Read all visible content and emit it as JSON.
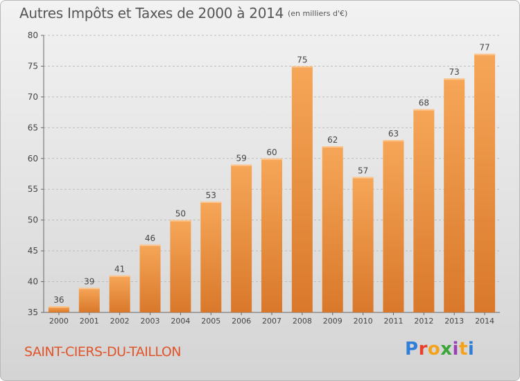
{
  "header": {
    "title": "Autres Impôts et Taxes de 2000 à 2014",
    "subtitle": "(en milliers d'€)"
  },
  "footer": {
    "commune": "SAINT-CIERS-DU-TAILLON",
    "logo_letters": [
      "P",
      "r",
      "o",
      "x",
      "i",
      "t",
      "i"
    ],
    "logo_colors": [
      "#2f7ed8",
      "#e8402a",
      "#f4a21c",
      "#3aa63a",
      "#9b3fb5",
      "#f4a21c",
      "#2f7ed8"
    ]
  },
  "colors": {
    "bar_top": "#f6a658",
    "bar_bottom": "#d9782a",
    "bar_cap": "#fcc690",
    "grid": "#bcbcbc",
    "axis_text": "#444444",
    "commune": "#e0542a"
  },
  "chart_data": {
    "type": "bar",
    "categories": [
      "2000",
      "2001",
      "2002",
      "2003",
      "2004",
      "2005",
      "2006",
      "2007",
      "2008",
      "2009",
      "2010",
      "2011",
      "2012",
      "2013",
      "2014"
    ],
    "values": [
      36,
      39,
      41,
      46,
      50,
      53,
      59,
      60,
      75,
      62,
      57,
      63,
      68,
      73,
      77
    ],
    "yticks": [
      35,
      40,
      45,
      50,
      55,
      60,
      65,
      70,
      75,
      80
    ],
    "ylim": [
      35,
      80
    ],
    "grid": true,
    "title": "Autres Impôts et Taxes de 2000 à 2014",
    "xlabel": "",
    "ylabel": ""
  }
}
